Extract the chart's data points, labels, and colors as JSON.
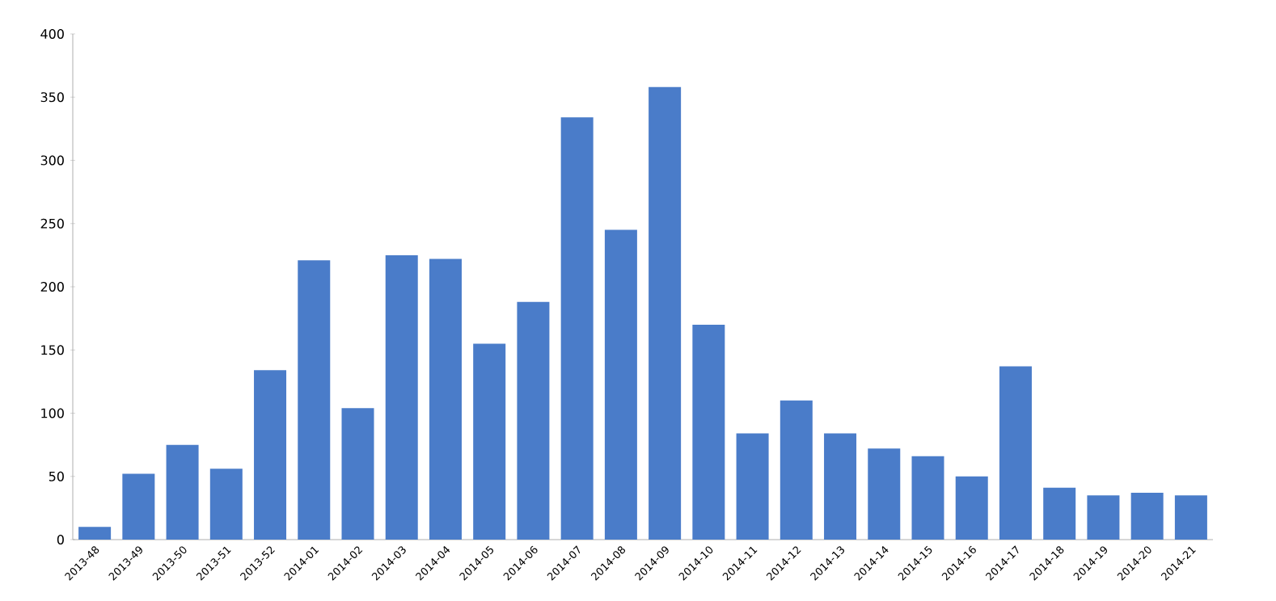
{
  "chart_data": {
    "type": "bar",
    "categories": [
      "2013-48",
      "2013-49",
      "2013-50",
      "2013-51",
      "2013-52",
      "2014-01",
      "2014-02",
      "2014-03",
      "2014-04",
      "2014-05",
      "2014-06",
      "2014-07",
      "2014-08",
      "2014-09",
      "2014-10",
      "2014-11",
      "2014-12",
      "2014-13",
      "2014-14",
      "2014-15",
      "2014-16",
      "2014-17",
      "2014-18",
      "2014-19",
      "2014-20",
      "2014-21"
    ],
    "values": [
      10,
      52,
      75,
      56,
      134,
      221,
      104,
      225,
      222,
      155,
      188,
      334,
      245,
      358,
      170,
      84,
      110,
      84,
      72,
      66,
      50,
      137,
      41,
      35,
      37,
      35
    ],
    "color": "#4a7cc9",
    "ylim": [
      0,
      400
    ],
    "yticks": [
      0,
      50,
      100,
      150,
      200,
      250,
      300,
      350,
      400
    ],
    "grid": false
  }
}
